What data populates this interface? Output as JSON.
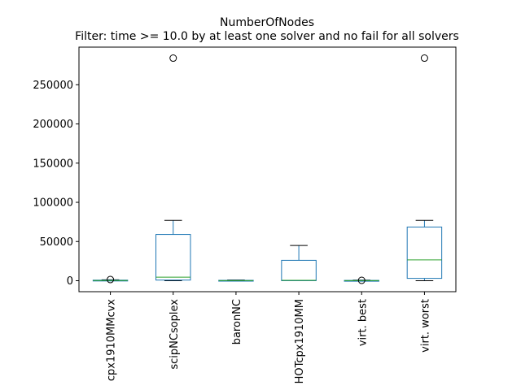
{
  "chart_data": {
    "type": "box",
    "title": "NumberOfNodes",
    "subtitle": "Filter: time >= 10.0 by at least one solver and no fail for all solvers",
    "xlabel": "",
    "ylabel": "",
    "ylim": [
      -14000,
      298000
    ],
    "yticks": [
      0,
      50000,
      100000,
      150000,
      200000,
      250000
    ],
    "ytick_labels": [
      "0",
      "50000",
      "100000",
      "150000",
      "200000",
      "250000"
    ],
    "grid": false,
    "legend": "none",
    "colors": {
      "box": "#1f77b4",
      "median": "#2ca02c",
      "whisker": "#000000"
    },
    "categories": [
      "cpx1910MMcvx",
      "scipNCsoplex",
      "baronNC",
      "HOTcpx1910MM",
      "virt. best",
      "virt. worst"
    ],
    "boxes": [
      {
        "q1": 0,
        "median": 200,
        "q3": 700,
        "whisker_low": 0,
        "whisker_high": 1200,
        "outliers": [
          1500
        ]
      },
      {
        "q1": 800,
        "median": 4500,
        "q3": 59000,
        "whisker_low": 0,
        "whisker_high": 77000,
        "outliers": [
          284000
        ]
      },
      {
        "q1": 0,
        "median": 100,
        "q3": 500,
        "whisker_low": 0,
        "whisker_high": 900,
        "outliers": []
      },
      {
        "q1": 0,
        "median": 500,
        "q3": 26000,
        "whisker_low": 0,
        "whisker_high": 45000,
        "outliers": []
      },
      {
        "q1": 0,
        "median": 100,
        "q3": 400,
        "whisker_low": 0,
        "whisker_high": 800,
        "outliers": [
          500
        ]
      },
      {
        "q1": 3000,
        "median": 26500,
        "q3": 68500,
        "whisker_low": 0,
        "whisker_high": 77000,
        "outliers": [
          284000
        ]
      }
    ]
  }
}
